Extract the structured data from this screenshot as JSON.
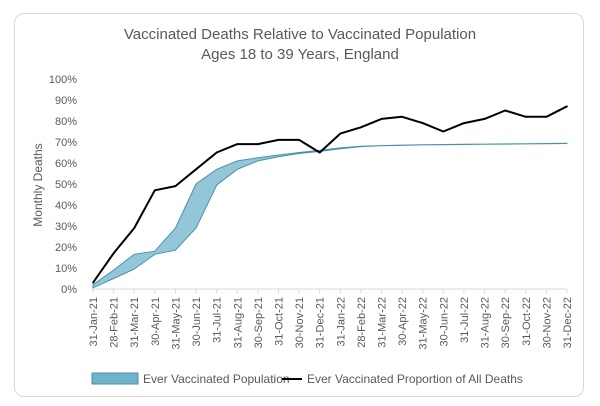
{
  "chart_data": {
    "type": "area",
    "title": "Vaccinated Deaths Relative to Vaccinated Population",
    "subtitle": "Ages 18 to 39 Years, England",
    "xlabel": "",
    "ylabel": "Monthly Deaths",
    "ylim": [
      0,
      100
    ],
    "y_ticks": [
      "0%",
      "10%",
      "20%",
      "30%",
      "40%",
      "50%",
      "60%",
      "70%",
      "80%",
      "90%",
      "100%"
    ],
    "grid": false,
    "legend_position": "bottom",
    "categories": [
      "31-Jan-21",
      "28-Feb-21",
      "31-Mar-21",
      "30-Apr-21",
      "31-May-21",
      "30-Jun-21",
      "31-Jul-21",
      "31-Aug-21",
      "30-Sep-21",
      "31-Oct-21",
      "30-Nov-21",
      "31-Dec-21",
      "31-Jan-22",
      "28-Feb-22",
      "31-Mar-22",
      "30-Apr-22",
      "31-May-22",
      "30-Jun-22",
      "31-Jul-22",
      "31-Aug-22",
      "30-Sep-22",
      "31-Oct-22",
      "30-Nov-22",
      "31-Dec-22"
    ],
    "series": [
      {
        "name": "Ever Vaccinated Population",
        "type": "band",
        "color": "#6fb3c8",
        "upper": [
          2,
          9,
          16.5,
          18,
          29,
          50,
          57,
          61,
          62.5,
          63.8,
          65,
          66,
          67.2,
          68,
          68.3,
          68.5,
          68.7,
          68.8,
          68.9,
          69,
          69.1,
          69.2,
          69.3,
          69.4
        ],
        "lower": [
          0.5,
          5,
          9.5,
          16.5,
          18.5,
          29,
          49.5,
          57,
          61,
          63,
          64.5,
          65.5,
          66.8,
          67.8,
          68.2,
          68.4,
          68.6,
          68.7,
          68.8,
          68.9,
          69,
          69.1,
          69.2,
          69.3
        ]
      },
      {
        "name": "Ever Vaccinated Proportion of All Deaths",
        "type": "line",
        "color": "#000000",
        "values": [
          3,
          17,
          29,
          47,
          49,
          57,
          65,
          69,
          69,
          71,
          71,
          65,
          74,
          77,
          81,
          82,
          79,
          75,
          79,
          81,
          85,
          82,
          82,
          87
        ]
      }
    ]
  }
}
